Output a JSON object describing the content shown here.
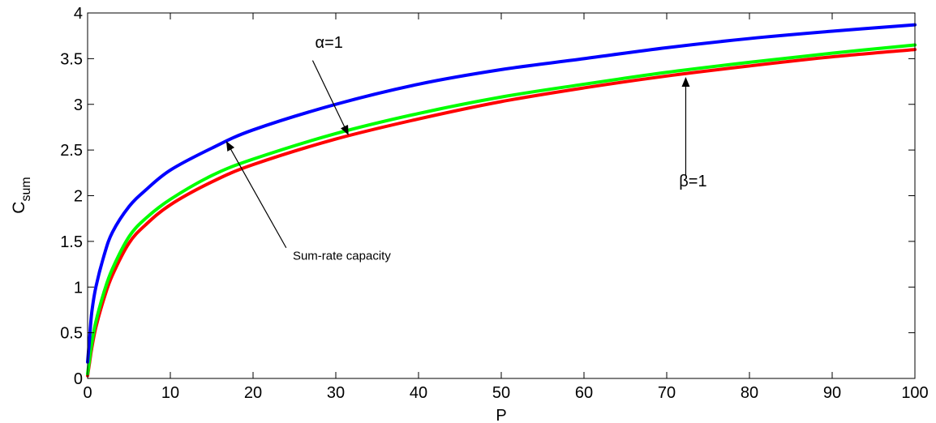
{
  "chart_data": {
    "type": "line",
    "title": "",
    "xlabel": "P",
    "ylabel": "C",
    "ylabel_subscript": "sum",
    "xlim": [
      0,
      100
    ],
    "ylim": [
      0,
      4
    ],
    "xticks": [
      0,
      10,
      20,
      30,
      40,
      50,
      60,
      70,
      80,
      90,
      100
    ],
    "yticks": [
      0,
      0.5,
      1,
      1.5,
      2,
      2.5,
      3,
      3.5,
      4
    ],
    "xtick_labels": [
      "0",
      "10",
      "20",
      "30",
      "40",
      "50",
      "60",
      "70",
      "80",
      "90",
      "100"
    ],
    "ytick_labels": [
      "0",
      "0.5",
      "1",
      "1.5",
      "2",
      "2.5",
      "3",
      "3.5",
      "4"
    ],
    "grid": false,
    "x": [
      0,
      0.25,
      0.5,
      1,
      2,
      3,
      5,
      7,
      10,
      15,
      20,
      30,
      40,
      50,
      60,
      70,
      80,
      90,
      100
    ],
    "series": [
      {
        "color": "#0000ff",
        "values": [
          0.18,
          0.45,
          0.72,
          1.0,
          1.35,
          1.6,
          1.88,
          2.06,
          2.28,
          2.52,
          2.72,
          3.0,
          3.22,
          3.38,
          3.5,
          3.62,
          3.72,
          3.8,
          3.87
        ]
      },
      {
        "color": "#00ff00",
        "values": [
          0.05,
          0.22,
          0.38,
          0.62,
          0.95,
          1.2,
          1.55,
          1.75,
          1.96,
          2.22,
          2.4,
          2.68,
          2.9,
          3.08,
          3.22,
          3.35,
          3.46,
          3.56,
          3.65
        ]
      },
      {
        "color": "#ff0000",
        "values": [
          0.03,
          0.18,
          0.33,
          0.56,
          0.88,
          1.13,
          1.48,
          1.68,
          1.9,
          2.15,
          2.34,
          2.62,
          2.84,
          3.03,
          3.18,
          3.31,
          3.42,
          3.52,
          3.6
        ]
      }
    ],
    "annotations": [
      {
        "name": "alpha",
        "text": "α=1",
        "text_x": 27.5,
        "text_y": 3.62,
        "tail_x": 27.2,
        "tail_y": 3.48,
        "head_x": 31.5,
        "head_y": 2.67
      },
      {
        "name": "beta",
        "text": "β=1",
        "text_x": 71.5,
        "text_y": 2.1,
        "tail_x": 72.3,
        "tail_y": 2.22,
        "head_x": 72.3,
        "head_y": 3.29
      },
      {
        "name": "sum-rate",
        "text": "Sum-rate capacity",
        "text_x": 24.8,
        "text_y": 1.3,
        "tail_x": 24.0,
        "tail_y": 1.43,
        "head_x": 16.8,
        "head_y": 2.59
      }
    ]
  }
}
